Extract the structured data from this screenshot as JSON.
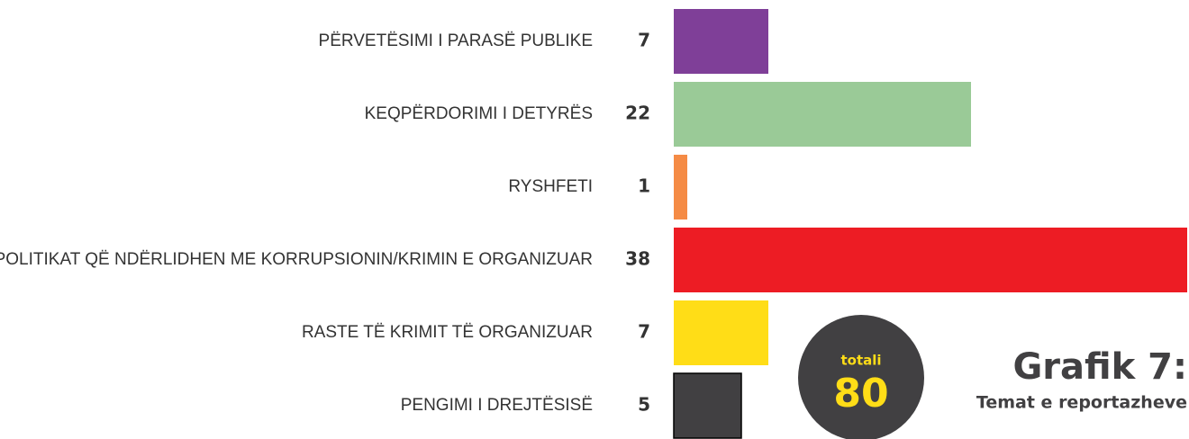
{
  "chart_data": {
    "type": "bar",
    "orientation": "horizontal",
    "title": "Grafik 7:",
    "subtitle": "Temat e reportazheve",
    "categories": [
      "PËRVETËSIMI I PARASË PUBLIKE",
      "KEQPËRDORIMI I DETYRËS",
      "RYSHFETI",
      "POLITIKAT QË NDËRLIDHEN ME KORRUPSIONIN/KRIMIN E ORGANIZUAR",
      "RASTE TË KRIMIT TË ORGANIZUAR",
      "PENGIMI I DREJTËSISË"
    ],
    "values": [
      7,
      22,
      1,
      38,
      7,
      5
    ],
    "colors": [
      "#7f3f98",
      "#9aca97",
      "#f58b45",
      "#ed1c24",
      "#ffdd17",
      "#414042"
    ],
    "xlim": [
      0,
      38
    ],
    "total_label": "totali",
    "total": 80
  }
}
